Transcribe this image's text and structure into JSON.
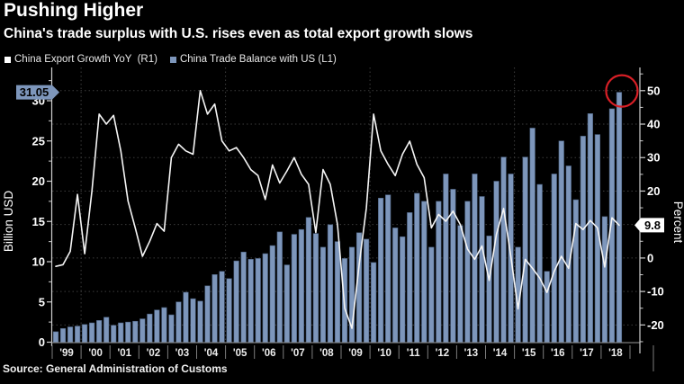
{
  "header": {
    "title": "Pushing Higher",
    "subtitle": "China's trade surplus with U.S. rises even as total export growth slows"
  },
  "legend": [
    {
      "label": "China Export Growth YoY  (R1)",
      "color": "#ffffff"
    },
    {
      "label": "China Trade Balance with US (L1)",
      "color": "#7d96bb"
    }
  ],
  "source": "Source: General Administration of Customs",
  "colors": {
    "background": "#000000",
    "bar_fill": "#7d96bb",
    "bar_edge": "#4a5f7d",
    "line": "#f5f5f5",
    "grid": "#3c3c3c",
    "axis": "#cfcfcf",
    "tick_text": "#ffffff",
    "annotation_circle": "#d81f26",
    "left_callout_bg": "#7d96bb",
    "right_callout_bg": "#ffffff",
    "callout_text": "#000000"
  },
  "chart_data": {
    "type": "bar+line",
    "frequency": "quarterly",
    "x_years": [
      "'99",
      "'00",
      "'01",
      "'02",
      "'03",
      "'04",
      "'05",
      "'06",
      "'07",
      "'08",
      "'09",
      "'10",
      "'11",
      "'12",
      "'13",
      "'14",
      "'15",
      "'16",
      "'17",
      "'18"
    ],
    "x_gridline_years": [
      "'00",
      "'05",
      "'10",
      "'15"
    ],
    "left_axis": {
      "label": "Billion USD",
      "ticks": [
        0,
        5,
        10,
        15,
        20,
        25,
        30
      ],
      "range": [
        0,
        33.2
      ]
    },
    "right_axis": {
      "label": "Percent",
      "ticks": [
        50,
        40,
        30,
        20,
        10,
        0,
        -10,
        -20
      ],
      "range": [
        -25.3,
        52
      ]
    },
    "series": [
      {
        "name": "China Trade Balance with US (L1)",
        "type": "bar",
        "axis": "left",
        "unit": "Billion USD",
        "values": [
          1.3,
          1.7,
          1.9,
          2.0,
          2.2,
          2.4,
          2.7,
          3.1,
          2.1,
          2.4,
          2.5,
          2.6,
          2.9,
          3.5,
          4.0,
          4.3,
          3.4,
          5.0,
          6.2,
          5.4,
          5.1,
          7.0,
          8.4,
          8.8,
          7.9,
          10.1,
          11.2,
          10.3,
          10.4,
          11.0,
          12.0,
          13.7,
          9.6,
          13.4,
          14.0,
          15.5,
          13.5,
          11.8,
          14.6,
          12.5,
          10.4,
          11.8,
          13.6,
          12.8,
          9.9,
          17.9,
          18.3,
          14.2,
          13.1,
          16.1,
          18.5,
          17.5,
          11.8,
          17.5,
          20.9,
          19.0,
          14.5,
          17.5,
          20.9,
          18.1,
          13.2,
          20.0,
          23.0,
          20.9,
          11.8,
          23.0,
          26.6,
          19.6,
          8.8,
          20.9,
          25.0,
          21.9,
          17.7,
          25.6,
          28.4,
          25.8,
          15.6,
          29.0,
          31.05
        ]
      },
      {
        "name": "China Export Growth YoY (R1)",
        "type": "line",
        "axis": "right",
        "unit": "Percent",
        "values": [
          -2.5,
          -2.0,
          2.0,
          19.0,
          1.3,
          20.0,
          43.0,
          40.0,
          42.6,
          32.0,
          17.0,
          9.0,
          0.5,
          5.0,
          10.3,
          8.0,
          30.0,
          34.0,
          32.0,
          31.0,
          50.0,
          43.0,
          46.0,
          35.0,
          32.0,
          33.0,
          30.0,
          26.4,
          24.6,
          17.5,
          27.8,
          22.4,
          26.0,
          30.0,
          25.0,
          22.0,
          7.6,
          26.4,
          22.0,
          10.0,
          -15.0,
          -21.0,
          -2.0,
          15.0,
          43.0,
          32.0,
          28.0,
          24.6,
          31.0,
          34.9,
          28.0,
          24.0,
          9.0,
          13.0,
          11.0,
          14.0,
          10.0,
          2.7,
          -0.4,
          3.6,
          -6.7,
          7.0,
          14.8,
          0.5,
          -15.2,
          -0.4,
          -3.1,
          -6.0,
          -10.3,
          -4.0,
          0.5,
          -3.1,
          10.3,
          8.5,
          11.2,
          9.0,
          -2.7,
          12.0,
          9.8
        ]
      }
    ],
    "callouts": [
      {
        "id": "latest-bar-value",
        "text": "31.05",
        "side": "left",
        "refers_to": "last bar, Billion USD"
      },
      {
        "id": "latest-line-value",
        "text": "9.8",
        "side": "right",
        "refers_to": "last line point, Percent"
      }
    ],
    "annotations": [
      {
        "type": "circle",
        "target": "top of last bar (31.05)"
      }
    ]
  }
}
